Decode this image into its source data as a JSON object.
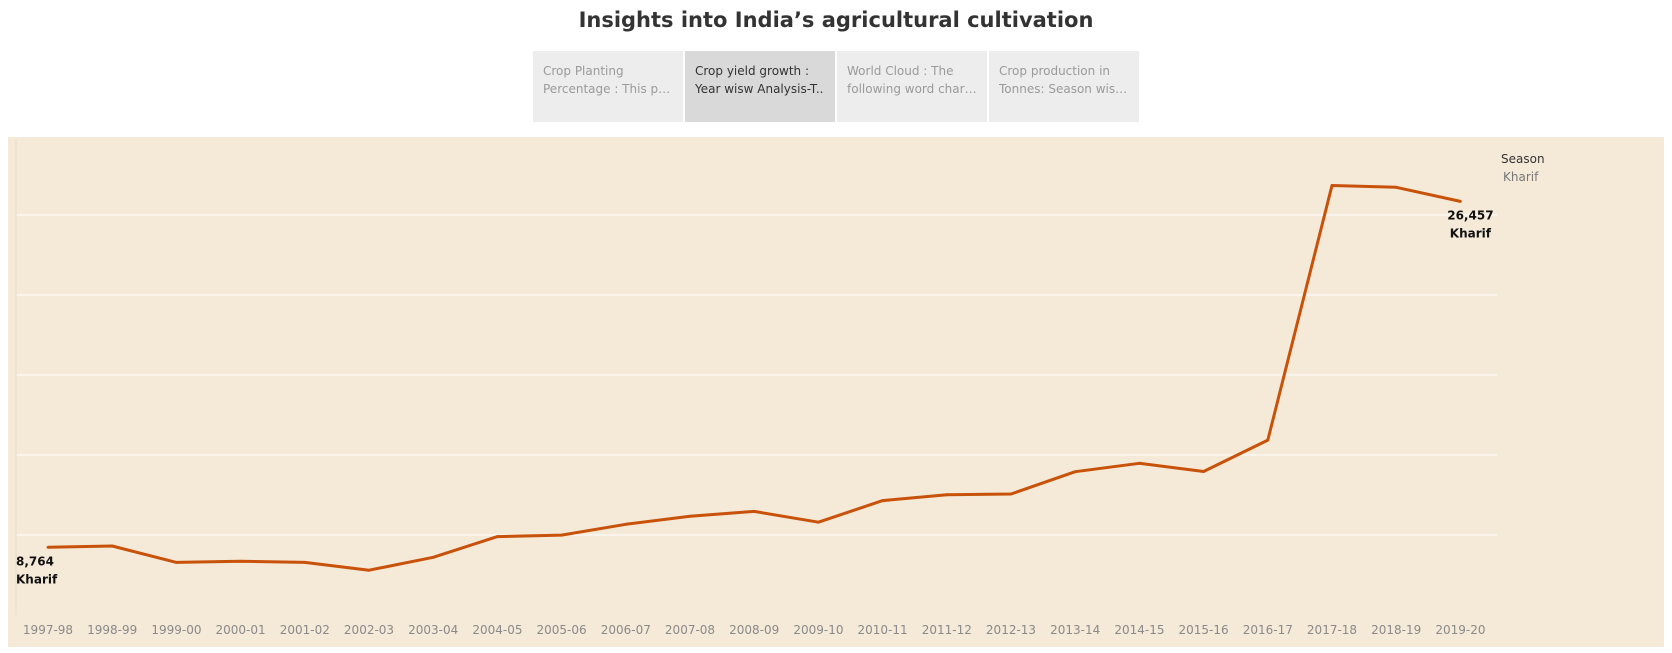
{
  "dashboard": {
    "title": "Insights into India’s agricultural cultivation"
  },
  "tabs": [
    {
      "line1": "Crop Planting",
      "line2": "Percentage : This per..",
      "active": false
    },
    {
      "line1": "Crop yield growth :",
      "line2": "Year wisw Analysis-T..",
      "active": true
    },
    {
      "line1": "World Cloud : The",
      "line2": "following word chart ..",
      "active": false
    },
    {
      "line1": "Crop production in",
      "line2": "Tonnes: Season wise ..",
      "active": false
    }
  ],
  "legend": {
    "title": "Season",
    "items": [
      {
        "label": "Kharif"
      }
    ]
  },
  "colors": {
    "line": "#c8520a",
    "plot_background": "#f5e9d8",
    "gridline": "#ffffff",
    "tick_text": "#8a8a8a"
  },
  "chart_data": {
    "type": "line",
    "title": "",
    "xlabel": "",
    "ylabel": "",
    "categories": [
      "1997-98",
      "1998-99",
      "1999-00",
      "2000-01",
      "2001-02",
      "2002-03",
      "2003-04",
      "2004-05",
      "2005-06",
      "2006-07",
      "2007-08",
      "2008-09",
      "2009-10",
      "2010-11",
      "2011-12",
      "2012-13",
      "2013-14",
      "2014-15",
      "2015-16",
      "2016-17",
      "2017-18",
      "2018-19",
      "2019-20"
    ],
    "series": [
      {
        "name": "Kharif",
        "values": [
          8764,
          8830,
          7990,
          8050,
          7990,
          7590,
          8250,
          9310,
          9390,
          9940,
          10350,
          10600,
          10050,
          11150,
          11450,
          11490,
          12630,
          13060,
          12640,
          14250,
          27270,
          27180,
          26457
        ]
      }
    ],
    "ylim": [
      5300,
      29600
    ],
    "yaxis_tick_labels_shown": false,
    "grid": true,
    "legend_position": "top-right",
    "annotations": [
      {
        "index": 0,
        "value_label": "8,764",
        "series_label": "Kharif"
      },
      {
        "index": 22,
        "value_label": "26,457",
        "series_label": "Kharif"
      }
    ]
  }
}
